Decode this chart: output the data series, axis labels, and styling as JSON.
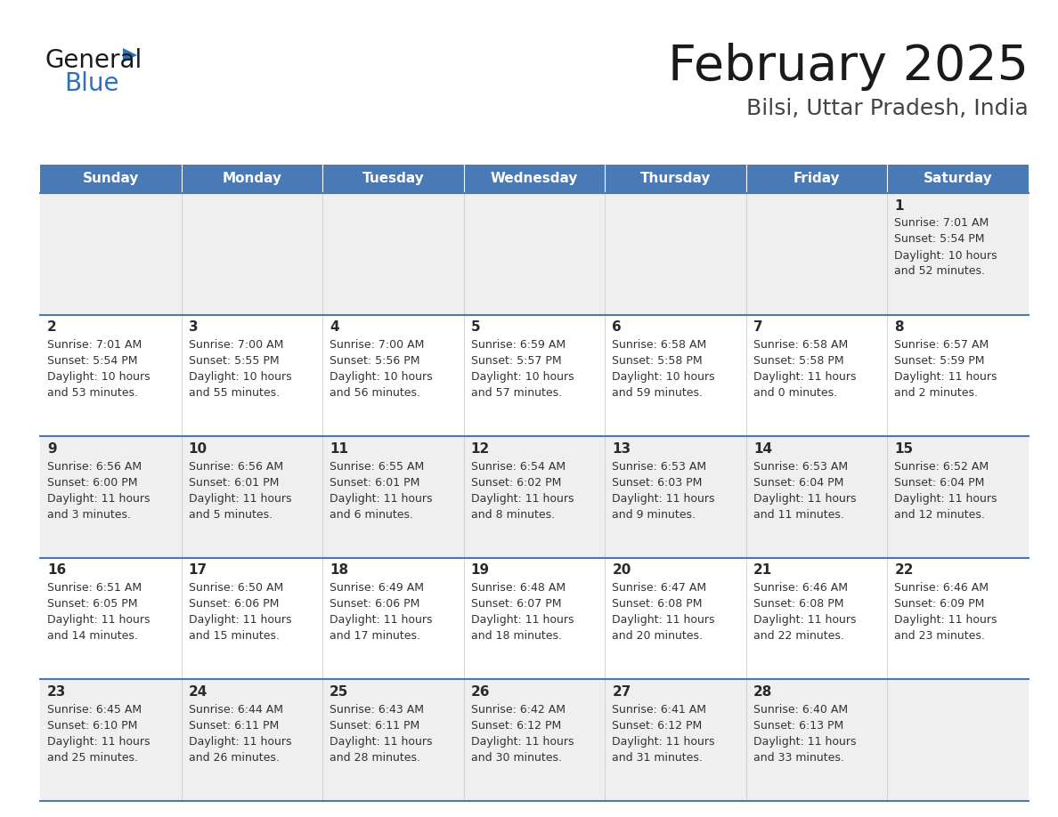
{
  "title": "February 2025",
  "subtitle": "Bilsi, Uttar Pradesh, India",
  "logo_text_general": "General",
  "logo_text_blue": "Blue",
  "days_of_week": [
    "Sunday",
    "Monday",
    "Tuesday",
    "Wednesday",
    "Thursday",
    "Friday",
    "Saturday"
  ],
  "header_bg_color": "#4a7ab5",
  "header_text_color": "#ffffff",
  "row_bg_light": "#efefef",
  "row_bg_white": "#ffffff",
  "cell_border_color": "#4a7ab5",
  "text_color": "#333333",
  "title_color": "#1a1a1a",
  "subtitle_color": "#444444",
  "calendar": [
    [
      null,
      null,
      null,
      null,
      null,
      null,
      {
        "day": 1,
        "sunrise": "7:01 AM",
        "sunset": "5:54 PM",
        "daylight": "10 hours\nand 52 minutes."
      }
    ],
    [
      {
        "day": 2,
        "sunrise": "7:01 AM",
        "sunset": "5:54 PM",
        "daylight": "10 hours\nand 53 minutes."
      },
      {
        "day": 3,
        "sunrise": "7:00 AM",
        "sunset": "5:55 PM",
        "daylight": "10 hours\nand 55 minutes."
      },
      {
        "day": 4,
        "sunrise": "7:00 AM",
        "sunset": "5:56 PM",
        "daylight": "10 hours\nand 56 minutes."
      },
      {
        "day": 5,
        "sunrise": "6:59 AM",
        "sunset": "5:57 PM",
        "daylight": "10 hours\nand 57 minutes."
      },
      {
        "day": 6,
        "sunrise": "6:58 AM",
        "sunset": "5:58 PM",
        "daylight": "10 hours\nand 59 minutes."
      },
      {
        "day": 7,
        "sunrise": "6:58 AM",
        "sunset": "5:58 PM",
        "daylight": "11 hours\nand 0 minutes."
      },
      {
        "day": 8,
        "sunrise": "6:57 AM",
        "sunset": "5:59 PM",
        "daylight": "11 hours\nand 2 minutes."
      }
    ],
    [
      {
        "day": 9,
        "sunrise": "6:56 AM",
        "sunset": "6:00 PM",
        "daylight": "11 hours\nand 3 minutes."
      },
      {
        "day": 10,
        "sunrise": "6:56 AM",
        "sunset": "6:01 PM",
        "daylight": "11 hours\nand 5 minutes."
      },
      {
        "day": 11,
        "sunrise": "6:55 AM",
        "sunset": "6:01 PM",
        "daylight": "11 hours\nand 6 minutes."
      },
      {
        "day": 12,
        "sunrise": "6:54 AM",
        "sunset": "6:02 PM",
        "daylight": "11 hours\nand 8 minutes."
      },
      {
        "day": 13,
        "sunrise": "6:53 AM",
        "sunset": "6:03 PM",
        "daylight": "11 hours\nand 9 minutes."
      },
      {
        "day": 14,
        "sunrise": "6:53 AM",
        "sunset": "6:04 PM",
        "daylight": "11 hours\nand 11 minutes."
      },
      {
        "day": 15,
        "sunrise": "6:52 AM",
        "sunset": "6:04 PM",
        "daylight": "11 hours\nand 12 minutes."
      }
    ],
    [
      {
        "day": 16,
        "sunrise": "6:51 AM",
        "sunset": "6:05 PM",
        "daylight": "11 hours\nand 14 minutes."
      },
      {
        "day": 17,
        "sunrise": "6:50 AM",
        "sunset": "6:06 PM",
        "daylight": "11 hours\nand 15 minutes."
      },
      {
        "day": 18,
        "sunrise": "6:49 AM",
        "sunset": "6:06 PM",
        "daylight": "11 hours\nand 17 minutes."
      },
      {
        "day": 19,
        "sunrise": "6:48 AM",
        "sunset": "6:07 PM",
        "daylight": "11 hours\nand 18 minutes."
      },
      {
        "day": 20,
        "sunrise": "6:47 AM",
        "sunset": "6:08 PM",
        "daylight": "11 hours\nand 20 minutes."
      },
      {
        "day": 21,
        "sunrise": "6:46 AM",
        "sunset": "6:08 PM",
        "daylight": "11 hours\nand 22 minutes."
      },
      {
        "day": 22,
        "sunrise": "6:46 AM",
        "sunset": "6:09 PM",
        "daylight": "11 hours\nand 23 minutes."
      }
    ],
    [
      {
        "day": 23,
        "sunrise": "6:45 AM",
        "sunset": "6:10 PM",
        "daylight": "11 hours\nand 25 minutes."
      },
      {
        "day": 24,
        "sunrise": "6:44 AM",
        "sunset": "6:11 PM",
        "daylight": "11 hours\nand 26 minutes."
      },
      {
        "day": 25,
        "sunrise": "6:43 AM",
        "sunset": "6:11 PM",
        "daylight": "11 hours\nand 28 minutes."
      },
      {
        "day": 26,
        "sunrise": "6:42 AM",
        "sunset": "6:12 PM",
        "daylight": "11 hours\nand 30 minutes."
      },
      {
        "day": 27,
        "sunrise": "6:41 AM",
        "sunset": "6:12 PM",
        "daylight": "11 hours\nand 31 minutes."
      },
      {
        "day": 28,
        "sunrise": "6:40 AM",
        "sunset": "6:13 PM",
        "daylight": "11 hours\nand 33 minutes."
      },
      null
    ]
  ]
}
